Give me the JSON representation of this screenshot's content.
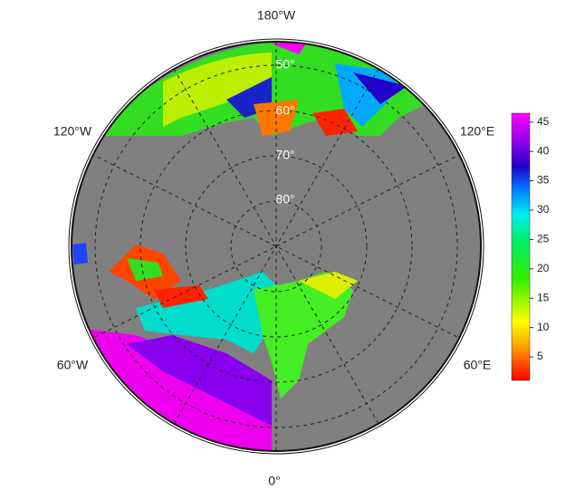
{
  "map": {
    "longitude_labels": [
      "180°W",
      "120°W",
      "120°E",
      "60°W",
      "60°E",
      "0°"
    ],
    "latitude_labels": [
      "50°",
      "60°",
      "70°",
      "80°"
    ]
  },
  "colorbar": {
    "lim": [
      1,
      46.5
    ],
    "ticks": [
      5,
      10,
      15,
      20,
      25,
      30,
      35,
      40,
      45
    ]
  }
}
